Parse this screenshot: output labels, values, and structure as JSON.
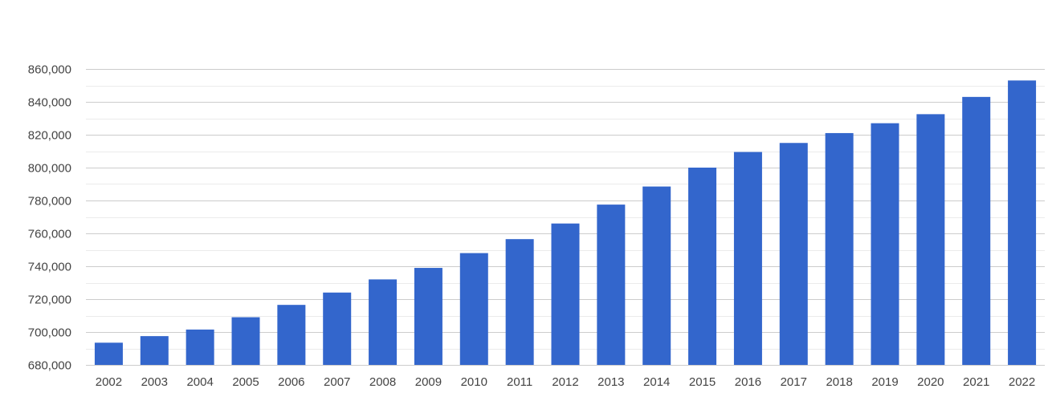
{
  "chart_data": {
    "type": "bar",
    "categories": [
      "2002",
      "2003",
      "2004",
      "2005",
      "2006",
      "2007",
      "2008",
      "2009",
      "2010",
      "2011",
      "2012",
      "2013",
      "2014",
      "2015",
      "2016",
      "2017",
      "2018",
      "2019",
      "2020",
      "2021",
      "2022"
    ],
    "series": [
      {
        "values": [
          693500,
          697500,
          701500,
          709000,
          716500,
          724000,
          732000,
          739000,
          748000,
          756500,
          766000,
          777500,
          788500,
          800000,
          809500,
          815000,
          821000,
          827000,
          832500,
          843000,
          853000
        ],
        "color": "#3366cc"
      }
    ],
    "title": "",
    "xlabel": "",
    "ylabel": "",
    "ylim": [
      680000,
      860000
    ],
    "yticks": [
      680000,
      700000,
      720000,
      740000,
      760000,
      780000,
      800000,
      820000,
      840000,
      860000
    ],
    "ytick_labels": [
      "680,000",
      "700,000",
      "720,000",
      "740,000",
      "760,000",
      "780,000",
      "800,000",
      "820,000",
      "840,000",
      "860,000"
    ],
    "grid": true,
    "minor_grid": true,
    "legend": "none",
    "colors": {
      "bar": "#3366cc",
      "gridline": "#cccccc",
      "minor_gridline": "#ebebeb",
      "text": "#444444"
    }
  }
}
